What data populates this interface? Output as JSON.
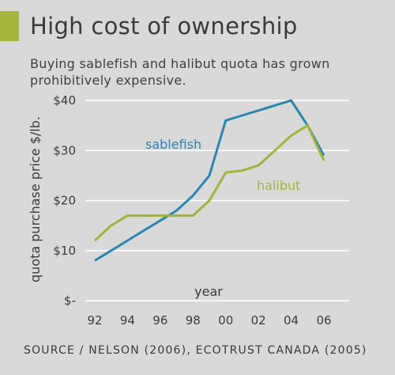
{
  "header": {
    "title": "High cost of ownership",
    "subtitle": "Buying sablefish and halibut quota has grown prohibitively expensive."
  },
  "source": "SOURCE / NELSON (2006), ECOTRUST CANADA (2005)",
  "colors": {
    "accent": "#a6b53b",
    "background": "#d9d9d9",
    "sablefish": "#2b86b0",
    "halibut": "#a2b43b",
    "grid": "#ffffff"
  },
  "chart_data": {
    "type": "line",
    "xlabel": "year",
    "ylabel": "quota purchase price  $/lb.",
    "x": [
      1992,
      1993,
      1994,
      1995,
      1996,
      1997,
      1998,
      1999,
      2000,
      2001,
      2002,
      2003,
      2004,
      2005,
      2006
    ],
    "xticks": [
      1992,
      1994,
      1996,
      1998,
      2000,
      2002,
      2004,
      2006
    ],
    "xtick_labels": [
      "92",
      "94",
      "96",
      "98",
      "00",
      "02",
      "04",
      "06"
    ],
    "ylim": [
      0,
      40
    ],
    "yticks": [
      0,
      10,
      20,
      30,
      40
    ],
    "ytick_labels": [
      "$-",
      "$10",
      "$20",
      "$30",
      "$40"
    ],
    "grid": true,
    "series": [
      {
        "name": "sablefish",
        "color": "#2b86b0",
        "x": [
          1992,
          1993,
          1994,
          1995,
          1996,
          1997,
          1998,
          1999,
          2000,
          2001,
          2002,
          2003,
          2004,
          2005,
          2006
        ],
        "values": [
          8,
          10,
          12,
          14,
          16,
          18,
          21,
          25,
          36,
          37,
          38,
          39,
          40,
          35,
          29
        ]
      },
      {
        "name": "halibut",
        "color": "#a2b43b",
        "x": [
          1992,
          1993,
          1994,
          1995,
          1996,
          1997,
          1998,
          1999,
          2000,
          2001,
          2002,
          2003,
          2004,
          2005,
          2006
        ],
        "values": [
          12,
          15,
          17,
          17,
          17,
          17,
          17,
          20,
          25.6,
          26,
          27,
          30,
          33,
          35,
          28
        ]
      }
    ]
  }
}
